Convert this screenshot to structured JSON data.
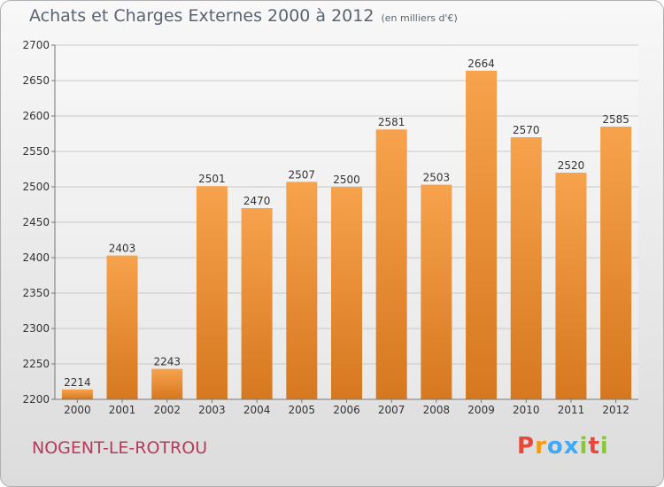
{
  "header": {
    "title": "Achats et Charges Externes 2000 à 2012",
    "subtitle": "(en milliers d'€)"
  },
  "footer": {
    "city": "NOGENT-LE-ROTROU",
    "brand": [
      "P",
      "r",
      "o",
      "x",
      "i",
      "t",
      "i"
    ],
    "brand_colors": [
      "#e8473c",
      "#f39c12",
      "#3fa9f5",
      "#3fa9f5",
      "#8cc63f",
      "#e8473c",
      "#8cc63f"
    ]
  },
  "chart_data": {
    "type": "bar",
    "title": "Achats et Charges Externes 2000 à 2012",
    "subtitle": "(en milliers d'€)",
    "categories": [
      "2000",
      "2001",
      "2002",
      "2003",
      "2004",
      "2005",
      "2006",
      "2007",
      "2008",
      "2009",
      "2010",
      "2011",
      "2012"
    ],
    "values": [
      2214,
      2403,
      2243,
      2501,
      2470,
      2507,
      2500,
      2581,
      2503,
      2664,
      2570,
      2520,
      2585
    ],
    "ylim": [
      2200,
      2700
    ],
    "yticks": [
      2200,
      2250,
      2300,
      2350,
      2400,
      2450,
      2500,
      2550,
      2600,
      2650,
      2700
    ],
    "grid": true,
    "bar_color_top": "#f7a24d",
    "bar_color_bottom": "#d6781f"
  }
}
